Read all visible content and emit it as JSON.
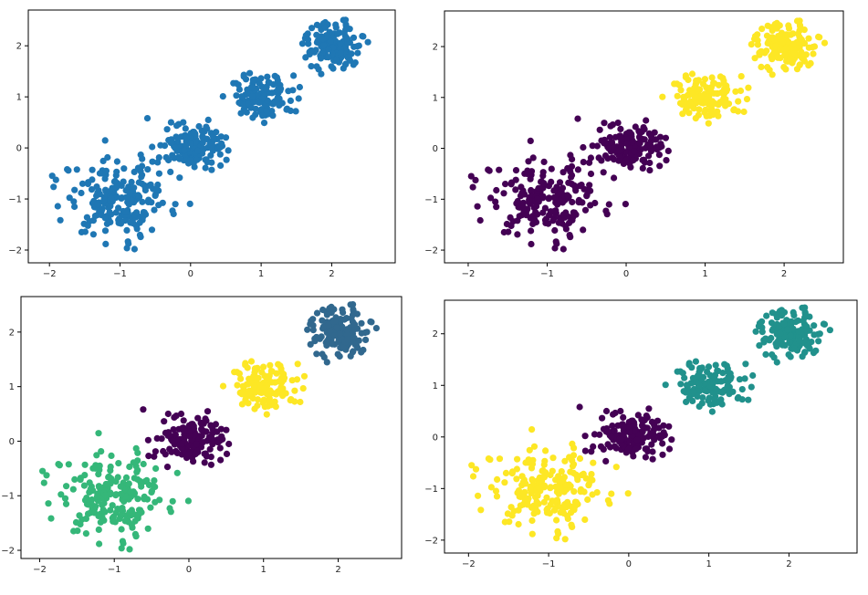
{
  "chart_data": [
    {
      "type": "scatter",
      "xlim": [
        -2.3,
        2.9
      ],
      "ylim": [
        -2.25,
        2.7
      ],
      "x_ticks": [
        -2,
        -1,
        0,
        1,
        2
      ],
      "y_ticks": [
        -2,
        -1,
        0,
        1,
        2
      ],
      "x_tick_labels": [
        "−2",
        "−1",
        "0",
        "1",
        "2"
      ],
      "y_tick_labels": [
        "−2",
        "−1",
        "0",
        "1",
        "2"
      ],
      "grid": false,
      "series": [
        {
          "color": "#1f77b4",
          "clusters": [
            {
              "center": [
                -1.0,
                -1.0
              ],
              "count": 200
            },
            {
              "center": [
                0.0,
                0.0
              ],
              "count": 150
            },
            {
              "center": [
                1.0,
                1.0
              ],
              "count": 130
            },
            {
              "center": [
                2.0,
                2.0
              ],
              "count": 150
            }
          ]
        }
      ]
    },
    {
      "type": "scatter",
      "xlim": [
        -2.3,
        2.75
      ],
      "ylim": [
        -2.25,
        2.7
      ],
      "x_ticks": [
        -2,
        -1,
        0,
        1,
        2
      ],
      "y_ticks": [
        -2,
        -1,
        0,
        1,
        2
      ],
      "x_tick_labels": [
        "−2",
        "−1",
        "0",
        "1",
        "2"
      ],
      "y_tick_labels": [
        "−2",
        "−1",
        "0",
        "1",
        "2"
      ],
      "grid": false,
      "series": [
        {
          "color": "#440154",
          "clusters": [
            {
              "center": [
                -1.0,
                -1.0
              ],
              "count": 200
            },
            {
              "center": [
                0.0,
                0.0
              ],
              "count": 150
            }
          ]
        },
        {
          "color": "#fde725",
          "clusters": [
            {
              "center": [
                1.0,
                1.0
              ],
              "count": 130
            },
            {
              "center": [
                2.0,
                2.0
              ],
              "count": 150
            }
          ]
        }
      ]
    },
    {
      "type": "scatter",
      "xlim": [
        -2.25,
        2.85
      ],
      "ylim": [
        -2.15,
        2.65
      ],
      "x_ticks": [
        -2,
        -1,
        0,
        1,
        2
      ],
      "y_ticks": [
        -2,
        -1,
        0,
        1,
        2
      ],
      "x_tick_labels": [
        "−2",
        "−1",
        "0",
        "1",
        "2"
      ],
      "y_tick_labels": [
        "−2",
        "−1",
        "0",
        "1",
        "2"
      ],
      "grid": false,
      "series": [
        {
          "color": "#35b779",
          "clusters": [
            {
              "center": [
                -1.0,
                -1.0
              ],
              "count": 200
            }
          ]
        },
        {
          "color": "#440154",
          "clusters": [
            {
              "center": [
                0.0,
                0.0
              ],
              "count": 150
            }
          ]
        },
        {
          "color": "#fde725",
          "clusters": [
            {
              "center": [
                1.0,
                1.0
              ],
              "count": 130
            }
          ]
        },
        {
          "color": "#31688e",
          "clusters": [
            {
              "center": [
                2.0,
                2.0
              ],
              "count": 150
            }
          ]
        }
      ]
    },
    {
      "type": "scatter",
      "xlim": [
        -2.3,
        2.85
      ],
      "ylim": [
        -2.25,
        2.65
      ],
      "x_ticks": [
        -2,
        -1,
        0,
        1,
        2
      ],
      "y_ticks": [
        -2,
        -1,
        0,
        1,
        2
      ],
      "x_tick_labels": [
        "−2",
        "−1",
        "0",
        "1",
        "2"
      ],
      "y_tick_labels": [
        "−2",
        "−1",
        "0",
        "1",
        "2"
      ],
      "grid": false,
      "series": [
        {
          "color": "#fde725",
          "clusters": [
            {
              "center": [
                -1.0,
                -1.0
              ],
              "count": 200
            }
          ]
        },
        {
          "color": "#440154",
          "clusters": [
            {
              "center": [
                0.0,
                0.0
              ],
              "count": 150
            }
          ]
        },
        {
          "color": "#21918c",
          "clusters": [
            {
              "center": [
                1.0,
                1.0
              ],
              "count": 130
            },
            {
              "center": [
                2.0,
                2.0
              ],
              "count": 150
            }
          ]
        }
      ]
    }
  ]
}
